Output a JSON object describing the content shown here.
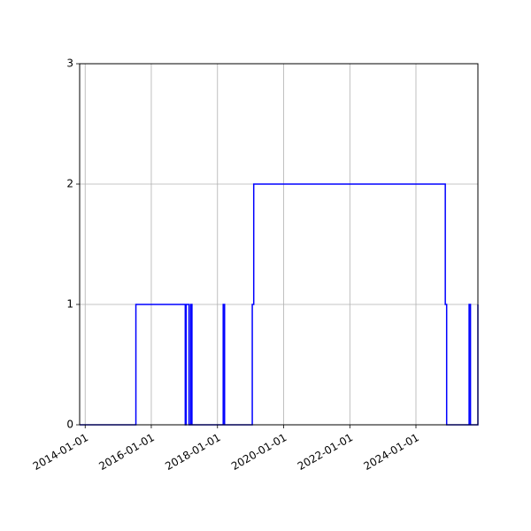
{
  "chart_data": {
    "type": "line",
    "title": "",
    "xlabel": "",
    "ylabel": "",
    "x_axis_type": "date",
    "xlim": [
      "2013-11-01",
      "2025-11-15"
    ],
    "ylim": [
      0,
      3
    ],
    "grid": true,
    "legend": "none",
    "line_color": "#0000ff",
    "grid_color": "#b0b0b0",
    "x_ticks": [
      "2014-01-01",
      "2016-01-01",
      "2018-01-01",
      "2020-01-01",
      "2022-01-01",
      "2024-01-01"
    ],
    "x_tick_labels": [
      "2014-01-01",
      "2016-01-01",
      "2018-01-01",
      "2020-01-01",
      "2022-01-01",
      "2024-01-01"
    ],
    "y_ticks": [
      0,
      1,
      2,
      3
    ],
    "y_tick_labels": [
      "0",
      "1",
      "2",
      "3"
    ],
    "series": [
      {
        "drawstyle": "steps-post",
        "x": [
          "2013-11-01",
          "2015-07-15",
          "2017-01-10",
          "2017-01-20",
          "2017-02-20",
          "2017-03-10",
          "2017-03-25",
          "2018-03-05",
          "2018-03-20",
          "2019-01-20",
          "2019-02-05",
          "2024-11-20",
          "2024-12-05",
          "2025-08-10",
          "2025-08-25",
          "2025-11-15"
        ],
        "y": [
          0,
          1,
          0,
          1,
          0,
          1,
          0,
          1,
          0,
          1,
          2,
          1,
          0,
          1,
          0,
          1
        ]
      }
    ]
  }
}
